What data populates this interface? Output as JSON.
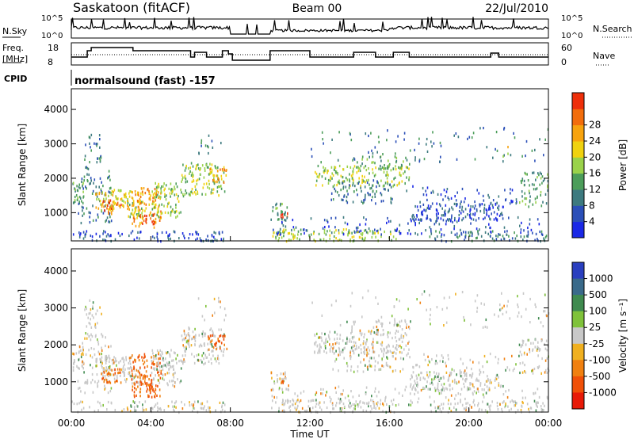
{
  "header": {
    "title": "Saskatoon (fitACF)",
    "beam": "Beam 00",
    "date": "22/Jul/2010"
  },
  "top_panels": {
    "nsky_label": "N.Sky",
    "nsearch_label": "N.Search",
    "freq_label_1": "Freq.",
    "freq_label_2": "[MHz]",
    "nave_label": "Nave",
    "cpid_label": "CPID",
    "cpid_text": "normalsound (fast) -157",
    "noise_ticks_left": [
      "10^5",
      "10^0"
    ],
    "noise_ticks_right": [
      "10^5",
      "10^0"
    ],
    "freq_ticks_left": [
      "18",
      "8"
    ],
    "nave_ticks_right": [
      "60",
      "0"
    ]
  },
  "chart_data": [
    {
      "type": "heatmap",
      "name": "power_panel",
      "ylabel": "Slant Range [km]",
      "xlabel": "Time UT",
      "xlim_hours": [
        0,
        24
      ],
      "ylim": [
        180,
        4600
      ],
      "yticks": [
        "1000",
        "2000",
        "3000",
        "4000"
      ],
      "xticks": [
        "00:00",
        "04:00",
        "08:00",
        "12:00",
        "16:00",
        "20:00",
        "00:00"
      ],
      "colorbar_label": "Power [dB]",
      "colorbar_ticks": [
        "4",
        "8",
        "12",
        "16",
        "20",
        "24",
        "28"
      ],
      "colorbar_colors": [
        "#1a28e6",
        "#2b4fb8",
        "#3d7a7f",
        "#4c9d5a",
        "#9ad24a",
        "#f0d20f",
        "#f7a30e",
        "#f26d0c",
        "#ee2f0a"
      ],
      "data_gap_hours": [
        8.0,
        10.0
      ]
    },
    {
      "type": "heatmap",
      "name": "velocity_panel",
      "ylabel": "Slant Range [km]",
      "xlabel": "Time UT",
      "xlim_hours": [
        0,
        24
      ],
      "ylim": [
        180,
        4600
      ],
      "yticks": [
        "1000",
        "2000",
        "3000",
        "4000"
      ],
      "xticks": [
        "00:00",
        "04:00",
        "08:00",
        "12:00",
        "16:00",
        "20:00",
        "00:00"
      ],
      "colorbar_label": "Velocity [m s⁻¹]",
      "colorbar_ticks": [
        "1000",
        "500",
        "100",
        "25",
        "-25",
        "-100",
        "-500",
        "-1000"
      ],
      "colorbar_colors": [
        "#2a3fbf",
        "#3a6a8a",
        "#3f8a4f",
        "#7fc23a",
        "#c8c8c8",
        "#f0b020",
        "#f08010",
        "#f05008",
        "#e81a08"
      ],
      "data_gap_hours": [
        8.0,
        10.0
      ]
    }
  ],
  "colors": {
    "frame": "#000000",
    "gap_dotted": "#000000"
  }
}
